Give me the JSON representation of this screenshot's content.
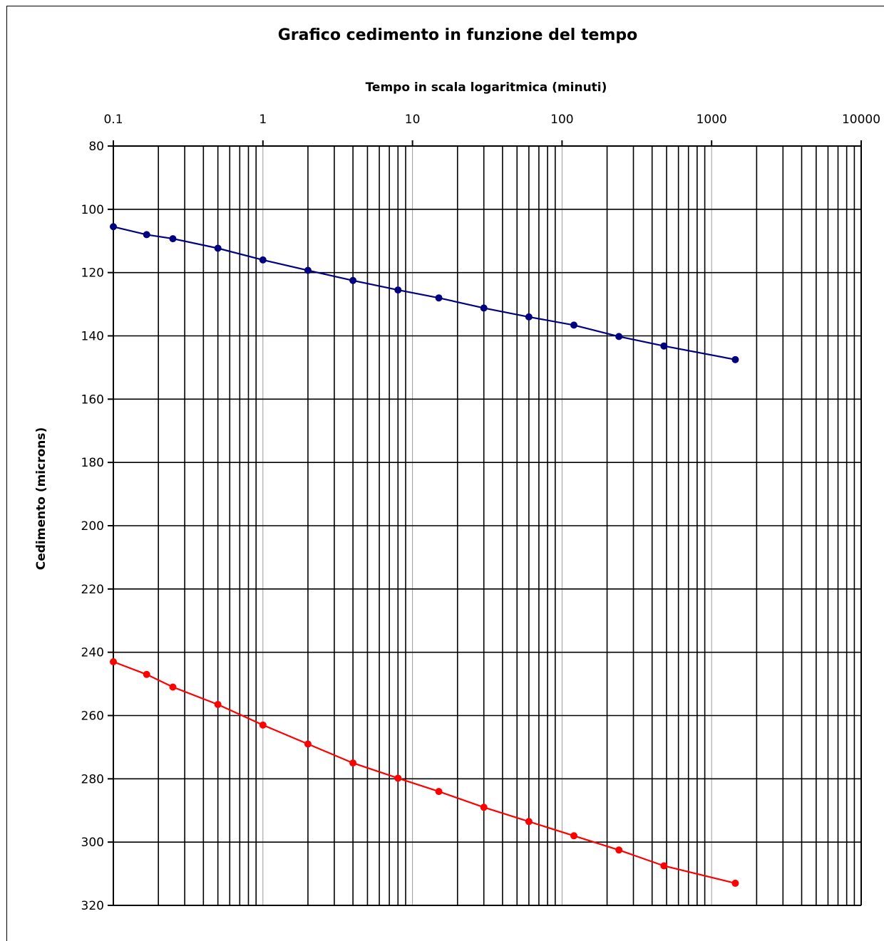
{
  "chart_data": {
    "type": "line",
    "title": "Grafico cedimento in funzione del tempo",
    "xlabel": "Tempo in scala logaritmica (minuti)",
    "ylabel": "Cedimento (microns)",
    "x_scale": "log",
    "x_axis_position": "top",
    "y_axis_inverted": true,
    "xlim": [
      0.1,
      10000
    ],
    "ylim": [
      80,
      320
    ],
    "x_ticks": [
      "0.1",
      "1",
      "10",
      "100",
      "1000",
      "10000"
    ],
    "y_ticks": [
      "80",
      "100",
      "120",
      "140",
      "160",
      "180",
      "200",
      "220",
      "240",
      "260",
      "280",
      "300",
      "320"
    ],
    "grid": true,
    "legend": false,
    "x": [
      0.1,
      0.167,
      0.25,
      0.5,
      1,
      2,
      4,
      8,
      15,
      30,
      60,
      120,
      240,
      480,
      1440
    ],
    "series": [
      {
        "color": "#000080",
        "values": [
          105.5,
          108,
          109.3,
          112.3,
          116,
          119.3,
          122.5,
          125.5,
          128,
          131.2,
          134,
          136.6,
          140.2,
          143.2,
          147.5
        ]
      },
      {
        "color": "#ff0000",
        "values": [
          243,
          247,
          251,
          256.5,
          263,
          269,
          275,
          279.8,
          284,
          289,
          293.5,
          298,
          302.5,
          307.5,
          313
        ]
      }
    ]
  }
}
